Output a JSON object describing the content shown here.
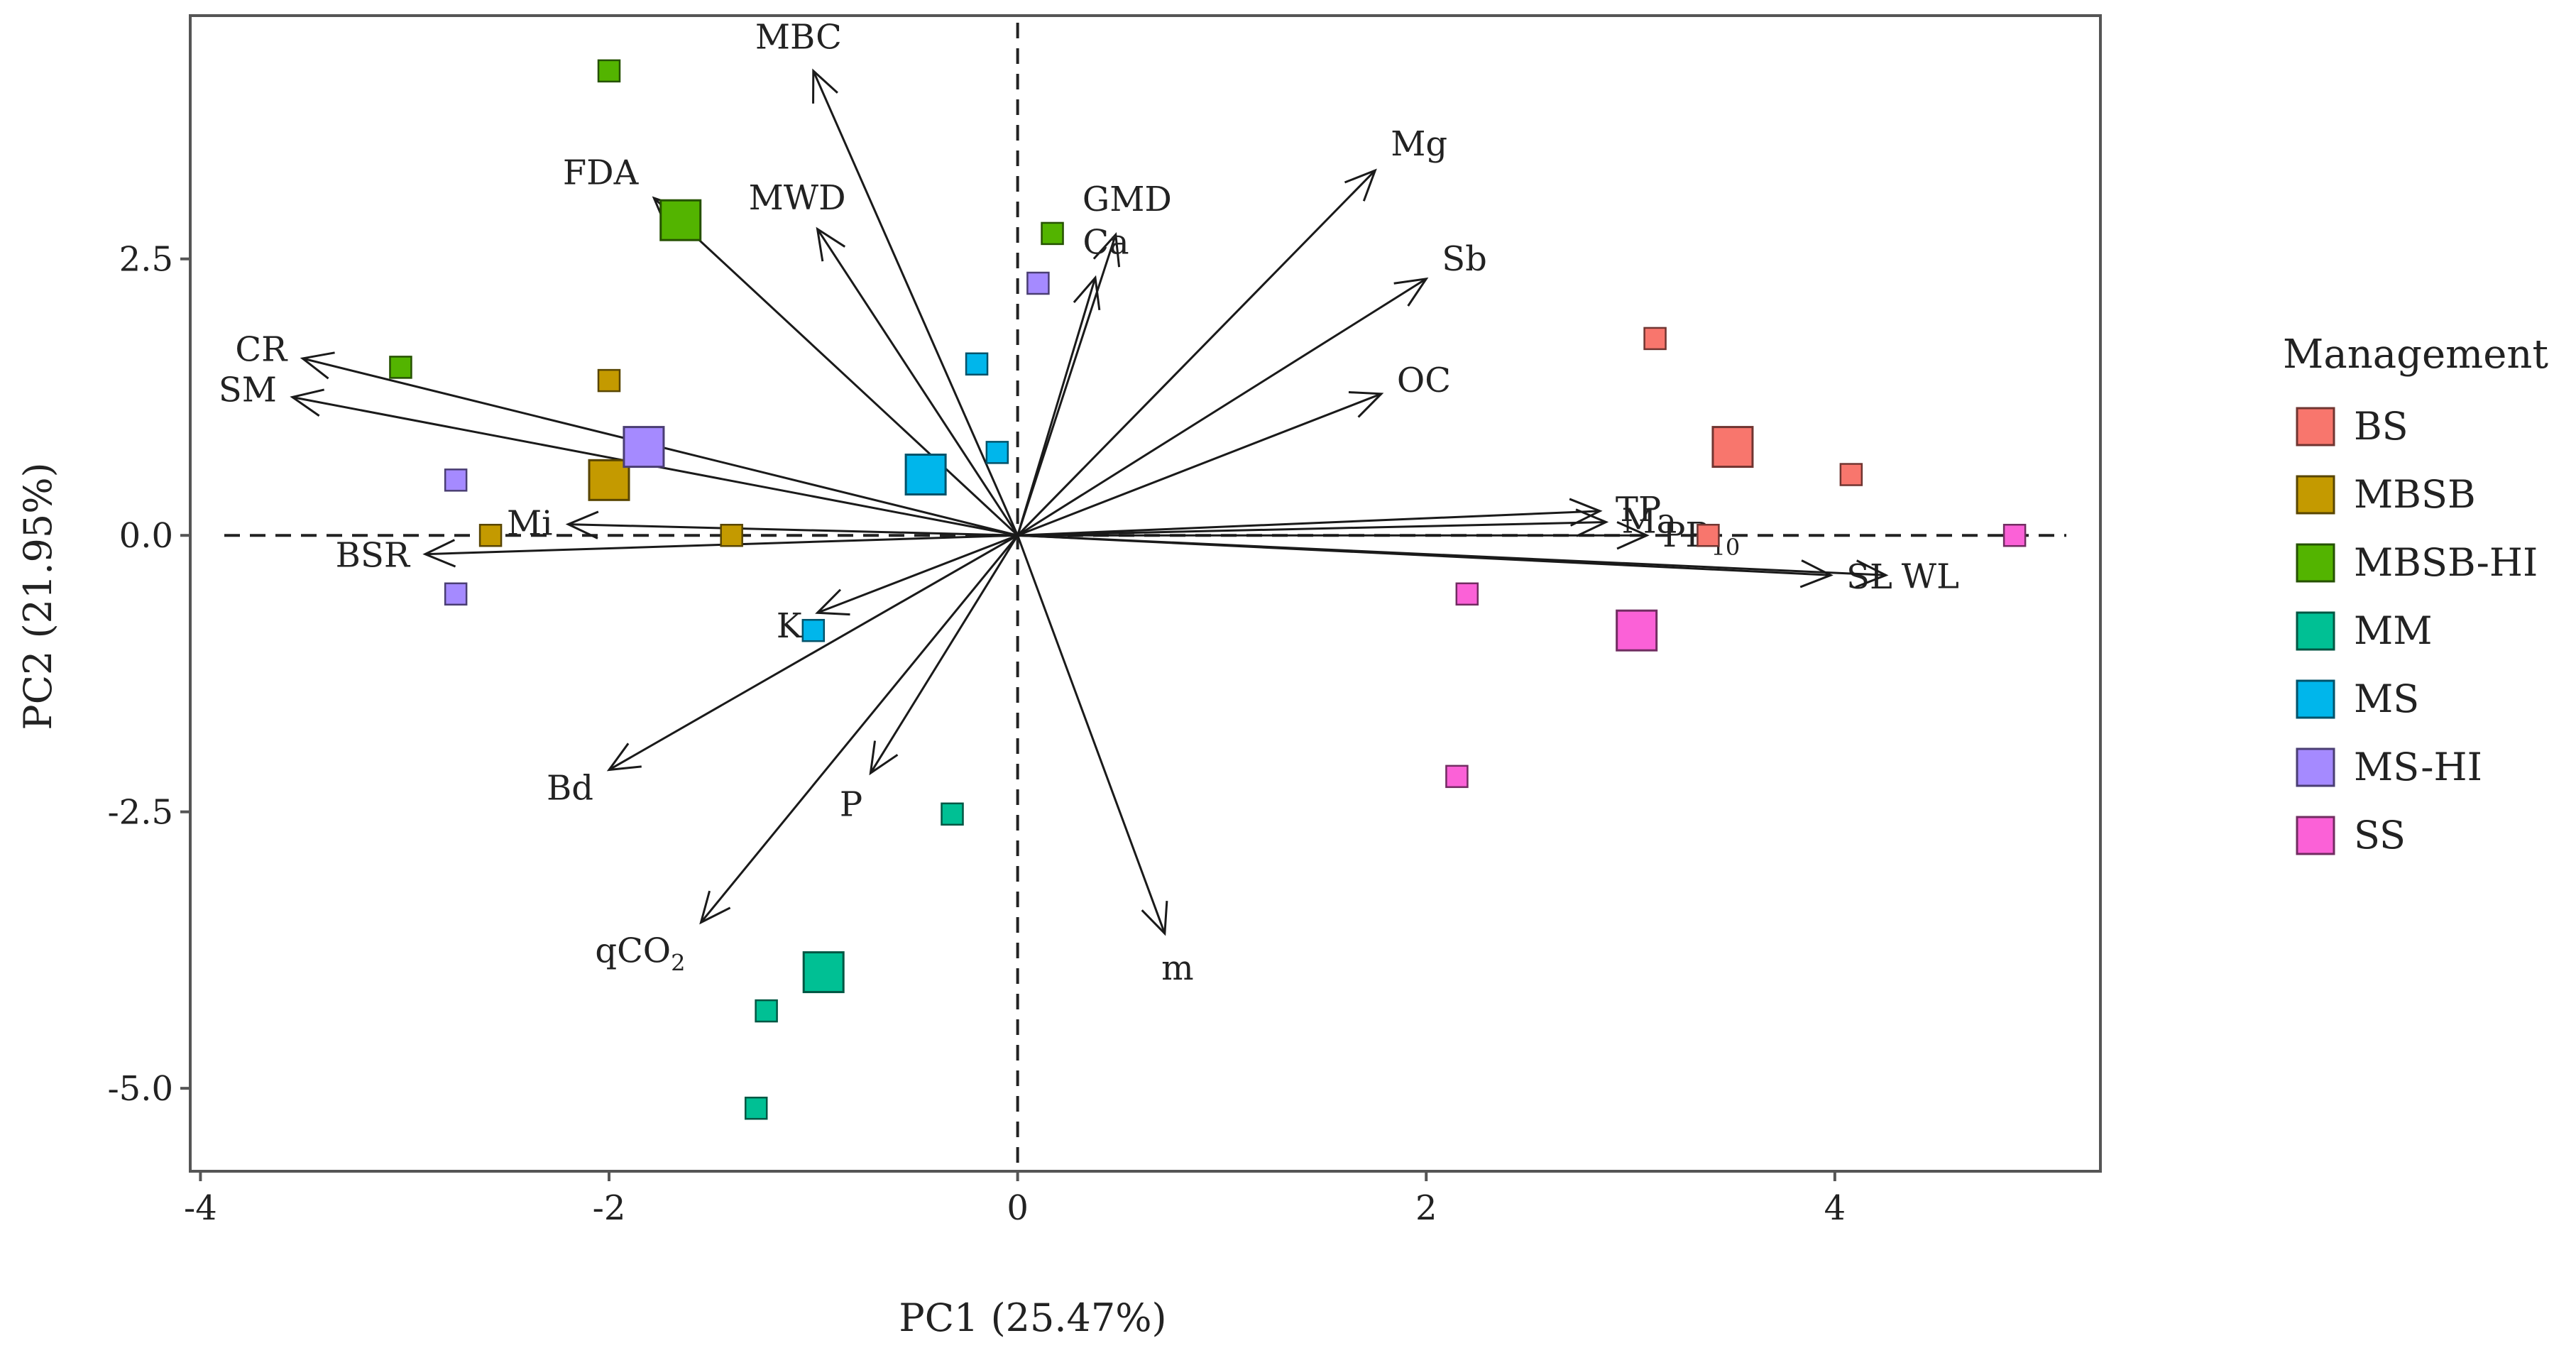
{
  "chart_data": {
    "type": "scatter",
    "subtype": "pca-biplot",
    "xlabel": "PC1 (25.47%)",
    "ylabel": "PC2 (21.95%)",
    "xlim": [
      -4.05,
      5.3
    ],
    "ylim": [
      -5.75,
      4.7
    ],
    "xticks": [
      {
        "value": -4,
        "label": "-4"
      },
      {
        "value": -2,
        "label": "-2"
      },
      {
        "value": 0,
        "label": "0"
      },
      {
        "value": 2,
        "label": "2"
      },
      {
        "value": 4,
        "label": "4"
      }
    ],
    "yticks": [
      {
        "value": 2.5,
        "label": "2.5"
      },
      {
        "value": 0,
        "label": "0.0"
      },
      {
        "value": -2.5,
        "label": "-2.5"
      },
      {
        "value": -5,
        "label": "-5.0"
      }
    ],
    "legend": {
      "title": "Management",
      "position": "right",
      "entries": [
        {
          "name": "BS",
          "color": "#F8766D"
        },
        {
          "name": "MBSB",
          "color": "#C49A00"
        },
        {
          "name": "MBSB-HI",
          "color": "#53B400"
        },
        {
          "name": "MM",
          "color": "#00C094"
        },
        {
          "name": "MS",
          "color": "#00B6EB"
        },
        {
          "name": "MS-HI",
          "color": "#A58AFF"
        },
        {
          "name": "SS",
          "color": "#FB61D7"
        }
      ]
    },
    "series": [
      {
        "name": "BS",
        "points": [
          [
            3.12,
            1.78
          ],
          [
            3.38,
            0.0
          ],
          [
            4.08,
            0.55
          ]
        ],
        "centroid": [
          3.5,
          0.8
        ]
      },
      {
        "name": "MBSB",
        "points": [
          [
            -2.0,
            1.4
          ],
          [
            -2.58,
            0.0
          ],
          [
            -1.4,
            0.0
          ]
        ],
        "centroid": [
          -2.0,
          0.5
        ]
      },
      {
        "name": "MBSB-HI",
        "points": [
          [
            -2.0,
            4.2
          ],
          [
            -3.02,
            1.52
          ],
          [
            0.17,
            2.73
          ]
        ],
        "centroid": [
          -1.65,
          2.85
        ]
      },
      {
        "name": "MM",
        "points": [
          [
            -0.32,
            -2.52
          ],
          [
            -1.23,
            -4.3
          ],
          [
            -1.28,
            -5.18
          ]
        ],
        "centroid": [
          -0.95,
          -3.95
        ]
      },
      {
        "name": "MS",
        "points": [
          [
            -0.2,
            1.55
          ],
          [
            -0.1,
            0.75
          ],
          [
            -1.0,
            -0.86
          ]
        ],
        "centroid": [
          -0.45,
          0.55
        ]
      },
      {
        "name": "MS-HI",
        "points": [
          [
            0.1,
            2.28
          ],
          [
            -2.75,
            0.5
          ],
          [
            -2.75,
            -0.53
          ]
        ],
        "centroid": [
          -1.83,
          0.8
        ]
      },
      {
        "name": "SS",
        "points": [
          [
            4.88,
            0.0
          ],
          [
            2.2,
            -0.53
          ],
          [
            2.15,
            -2.18
          ]
        ],
        "centroid": [
          3.03,
          -0.86
        ]
      }
    ],
    "loadings": [
      {
        "label": "MBC",
        "x": -1.0,
        "y": 4.2
      },
      {
        "label": "FDA",
        "x": -1.78,
        "y": 3.05
      },
      {
        "label": "MWD",
        "x": -0.98,
        "y": 2.77
      },
      {
        "label": "GMD",
        "x": 0.48,
        "y": 2.72
      },
      {
        "label": "Ca",
        "x": 0.38,
        "y": 2.33
      },
      {
        "label": "Mg",
        "x": 1.75,
        "y": 3.3
      },
      {
        "label": "Sb",
        "x": 2.0,
        "y": 2.32
      },
      {
        "label": "OC",
        "x": 1.78,
        "y": 1.28
      },
      {
        "label": "CR",
        "x": -3.5,
        "y": 1.6
      },
      {
        "label": "SM",
        "x": -3.55,
        "y": 1.25
      },
      {
        "label": "Mi",
        "x": -2.2,
        "y": 0.1
      },
      {
        "label": "BSR",
        "x": -2.9,
        "y": -0.17
      },
      {
        "label": "TP",
        "x": 2.85,
        "y": 0.22
      },
      {
        "label": "Ma",
        "x": 2.88,
        "y": 0.12
      },
      {
        "label": "PR10",
        "label_main": "PR",
        "label_sub": "10",
        "x": 3.08,
        "y": 0.0
      },
      {
        "label": "SL",
        "x": 3.98,
        "y": -0.36
      },
      {
        "label": "WL",
        "x": 4.25,
        "y": -0.36
      },
      {
        "label": "K",
        "x": -0.98,
        "y": -0.7
      },
      {
        "label": "P",
        "x": -0.72,
        "y": -2.15
      },
      {
        "label": "Bd",
        "x": -2.0,
        "y": -2.12
      },
      {
        "label": "qCO2",
        "label_main": "qCO",
        "label_sub": "2",
        "x": -1.55,
        "y": -3.5
      },
      {
        "label": "m",
        "x": 0.72,
        "y": -3.6
      }
    ]
  }
}
